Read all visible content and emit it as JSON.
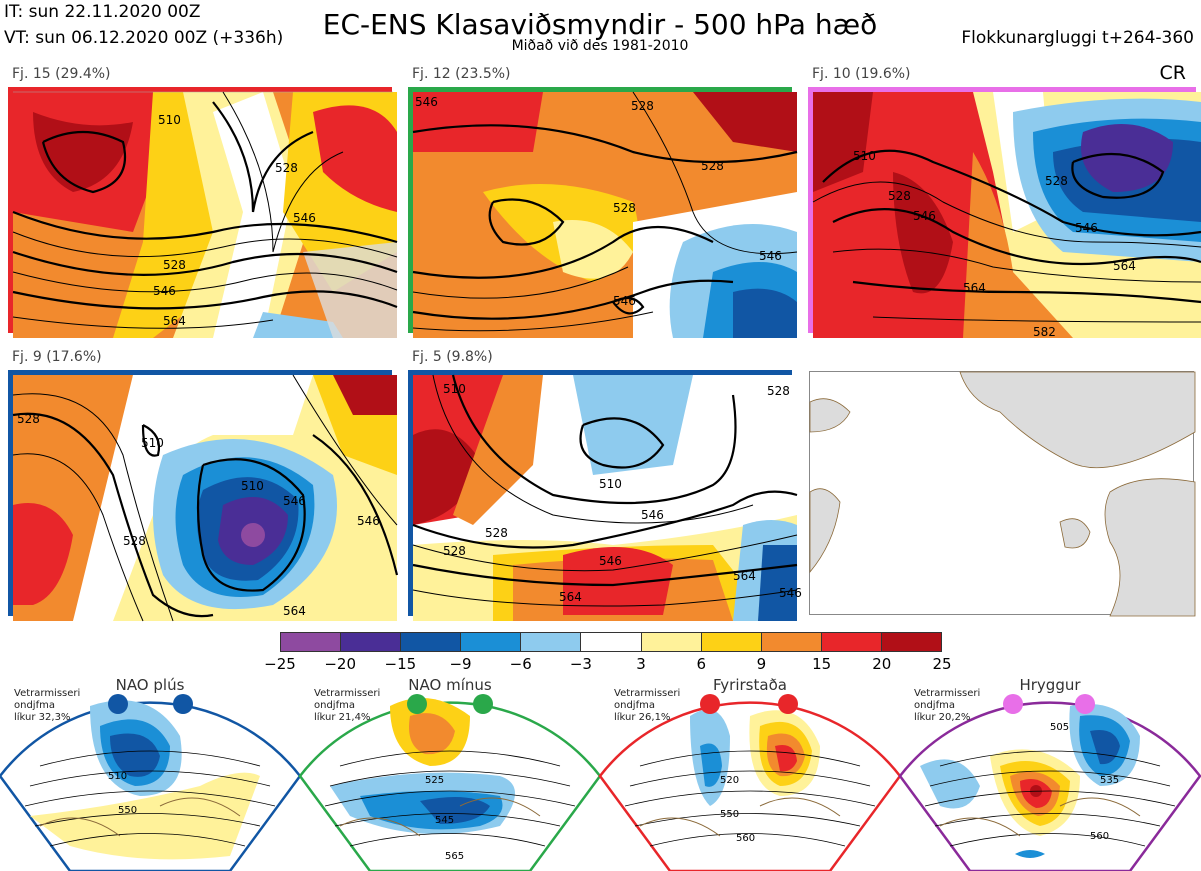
{
  "header": {
    "init_time": "IT: sun 22.11.2020 00Z",
    "valid_time": "VT: sun 06.12.2020 00Z  (+336h)",
    "title": "EC-ENS Klasaviðsmyndir - 500 hPa hæð",
    "subtitle": "Miðað við des 1981-2010",
    "window": "Flokkunargluggi t+264-360",
    "cr_label": "CR"
  },
  "colors": {
    "nao_plus": "#1156a4",
    "nao_minus": "#2aa84a",
    "blocking": "#e8262a",
    "ridge": "#e86fe8",
    "land": "#dcdcdc",
    "coast": "#8b6a3a"
  },
  "panels": [
    {
      "label": "Fj. 15 (29.4%)",
      "border": "#e8262a",
      "contours": [
        "510",
        "528",
        "546",
        "528",
        "546",
        "564"
      ]
    },
    {
      "label": "Fj. 12 (23.5%)",
      "border": "#2aa84a",
      "contours": [
        "546",
        "528",
        "528",
        "528",
        "546",
        "546"
      ]
    },
    {
      "label": "Fj. 10 (19.6%)",
      "border": "#e86fe8",
      "contours": [
        "510",
        "528",
        "546",
        "528",
        "546",
        "564",
        "564",
        "582"
      ]
    },
    {
      "label": "Fj. 9 (17.6%)",
      "border": "#1156a4",
      "contours": [
        "528",
        "510",
        "510",
        "528",
        "546",
        "546",
        "564"
      ]
    },
    {
      "label": "Fj. 5 (9.8%)",
      "border": "#1156a4",
      "contours": [
        "510",
        "528",
        "510",
        "528",
        "546",
        "528",
        "546",
        "564",
        "564",
        "546"
      ]
    }
  ],
  "colorbar": {
    "colors": [
      "#8e4aa0",
      "#4a2e96",
      "#1156a4",
      "#1b8fd6",
      "#8ecbee",
      "#ffffff",
      "#fff29a",
      "#fdd116",
      "#f28a2e",
      "#e8262a",
      "#b10f17"
    ],
    "ticks": [
      "−25",
      "−20",
      "−15",
      "−9",
      "−6",
      "−3",
      "3",
      "6",
      "9",
      "15",
      "20",
      "25"
    ]
  },
  "regimes": [
    {
      "name": "NAO plús",
      "note": [
        "Vetrarmisseri",
        "ondjfma",
        "líkur 32,3%"
      ],
      "color": "#1156a4",
      "contours": [
        "510",
        "550"
      ]
    },
    {
      "name": "NAO mínus",
      "note": [
        "Vetrarmisseri",
        "ondjfma",
        "líkur 21,4%"
      ],
      "color": "#2aa84a",
      "contours": [
        "525",
        "545",
        "565"
      ]
    },
    {
      "name": "Fyrirstaða",
      "note": [
        "Vetrarmisseri",
        "ondjfma",
        "líkur 26,1%"
      ],
      "color": "#e8262a",
      "contours": [
        "520",
        "550",
        "560"
      ]
    },
    {
      "name": "Hryggur",
      "note": [
        "Vetrarmisseri",
        "ondjfma",
        "líkur 20,2%"
      ],
      "color": "#8a2a9a",
      "contours": [
        "505",
        "535",
        "560"
      ]
    }
  ]
}
